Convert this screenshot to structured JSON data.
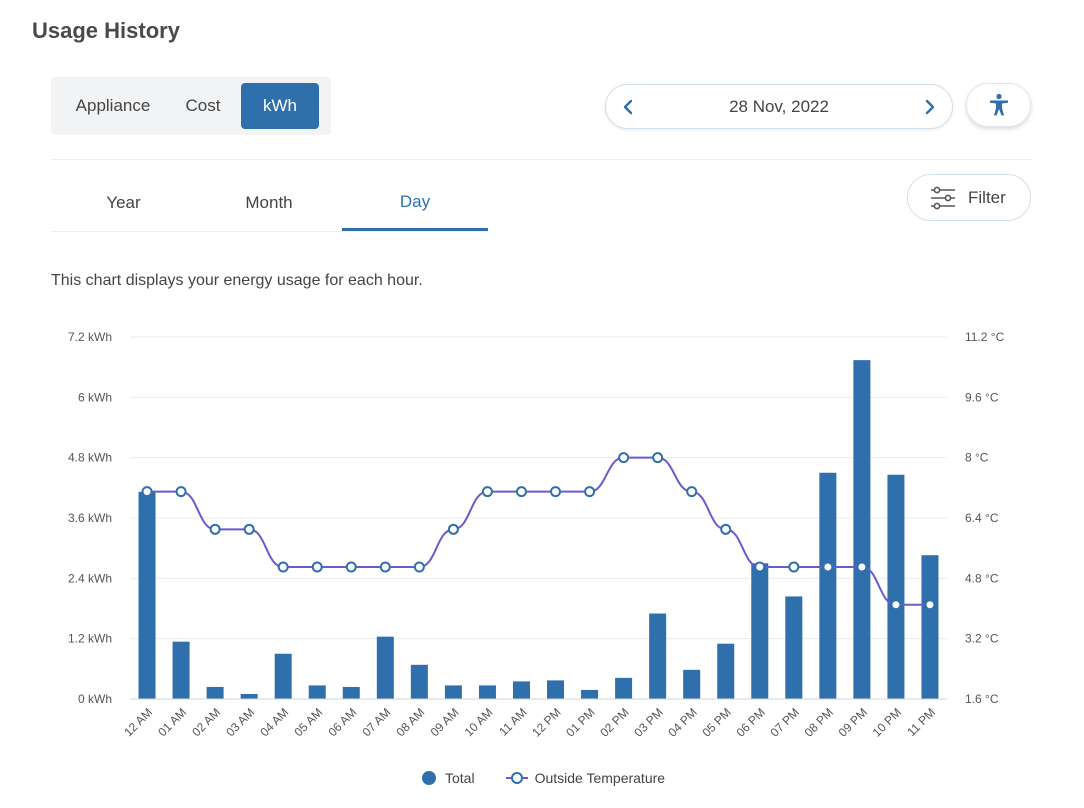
{
  "header": {
    "title": "Usage History"
  },
  "view_toggle": {
    "options": [
      "Appliance",
      "Cost",
      "kWh"
    ],
    "selected": "kWh"
  },
  "date_nav": {
    "date": "28 Nov, 2022",
    "prev_icon": "chevron-left-icon",
    "next_icon": "chevron-right-icon"
  },
  "accessibility": {
    "icon": "accessibility-icon"
  },
  "tabs": {
    "items": [
      "Year",
      "Month",
      "Day"
    ],
    "selected": "Day"
  },
  "filter": {
    "label": "Filter",
    "icon": "sliders-icon"
  },
  "description": "This chart displays your energy usage for each hour.",
  "colors": {
    "accent": "#2f6fab",
    "line": "#6a5acd",
    "grid": "#e6ecef"
  },
  "chart_data": {
    "type": "bar",
    "categories": [
      "12 AM",
      "01 AM",
      "02 AM",
      "03 AM",
      "04 AM",
      "05 AM",
      "06 AM",
      "07 AM",
      "08 AM",
      "09 AM",
      "10 AM",
      "11 AM",
      "12 PM",
      "01 PM",
      "02 PM",
      "03 PM",
      "04 PM",
      "05 PM",
      "06 PM",
      "07 PM",
      "08 PM",
      "09 PM",
      "10 PM",
      "11 PM"
    ],
    "series": [
      {
        "name": "Total",
        "type": "bar",
        "axis": "left",
        "unit": "kWh",
        "values": [
          4.12,
          1.14,
          0.24,
          0.1,
          0.9,
          0.27,
          0.24,
          1.24,
          0.68,
          0.27,
          0.27,
          0.35,
          0.37,
          0.18,
          0.42,
          1.7,
          0.58,
          1.1,
          2.7,
          2.04,
          4.5,
          6.74,
          4.46,
          2.86
        ]
      },
      {
        "name": "Outside Temperature",
        "type": "line",
        "axis": "right",
        "unit": "°C",
        "values": [
          7.1,
          7.1,
          6.1,
          6.1,
          5.1,
          5.1,
          5.1,
          5.1,
          5.1,
          6.1,
          7.1,
          7.1,
          7.1,
          7.1,
          8.0,
          8.0,
          7.1,
          6.1,
          5.1,
          5.1,
          5.1,
          5.1,
          4.1,
          4.1
        ]
      }
    ],
    "y_left": {
      "min": 0,
      "max": 7.2,
      "ticks": [
        "0 kWh",
        "1.2 kWh",
        "2.4 kWh",
        "3.6 kWh",
        "4.8 kWh",
        "6 kWh",
        "7.2 kWh"
      ],
      "tick_values": [
        0,
        1.2,
        2.4,
        3.6,
        4.8,
        6,
        7.2
      ]
    },
    "y_right": {
      "min": 1.6,
      "max": 11.2,
      "ticks": [
        "1.6 °C",
        "3.2 °C",
        "4.8 °C",
        "6.4 °C",
        "8 °C",
        "9.6 °C",
        "11.2 °C"
      ],
      "tick_values": [
        1.6,
        3.2,
        4.8,
        6.4,
        8,
        9.6,
        11.2
      ]
    },
    "grid": true,
    "legend_position": "bottom"
  }
}
